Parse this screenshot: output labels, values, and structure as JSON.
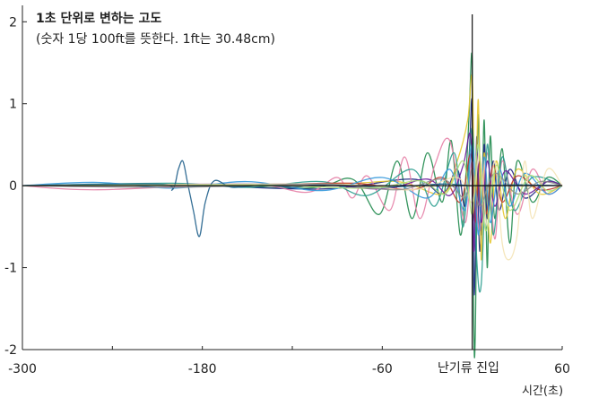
{
  "chart_data": {
    "type": "line",
    "title": "1초 단위로 변하는 고도",
    "subtitle": "(숫자 1당 100ft를 뜻한다. 1ft는 30.48cm)",
    "xlabel": "시간(초)",
    "ylabel": "",
    "xlim": [
      -300,
      60
    ],
    "ylim": [
      -2,
      2.2
    ],
    "x_ticks": [
      -300,
      -180,
      -60,
      60
    ],
    "x_tick_labels": [
      "-300",
      "-180",
      "-60",
      "60"
    ],
    "y_ticks": [
      -2,
      -1,
      0,
      1,
      2
    ],
    "y_tick_labels": [
      "-2",
      "-1",
      "0",
      "1",
      "2"
    ],
    "grid": false,
    "legend": "none",
    "annotations": [
      {
        "text": "난기류 진입",
        "x": 0
      }
    ],
    "series": [
      {
        "color": "#1f8a4c",
        "x": [
          -300,
          -200,
          -110,
          -80,
          -62,
          -50,
          -40,
          -30,
          -20,
          -14,
          -8,
          -4,
          -2,
          0,
          1,
          2,
          4,
          6,
          8,
          10,
          12,
          15,
          20,
          25,
          30,
          40,
          50,
          60
        ],
        "values": [
          0,
          0.01,
          -0.03,
          0.08,
          -0.35,
          0.3,
          -0.4,
          0.4,
          -0.2,
          0.55,
          -0.6,
          0.2,
          0.9,
          1.5,
          -1.6,
          -1.85,
          0.85,
          -0.6,
          0.8,
          -1.0,
          0.6,
          -0.4,
          0.45,
          -0.7,
          0.3,
          -0.2,
          0.1,
          0
        ]
      },
      {
        "color": "#1a237e",
        "x": [
          -300,
          -200,
          -100,
          -40,
          -20,
          -10,
          -5,
          -2,
          0,
          1,
          2,
          3,
          5,
          8,
          10,
          14,
          18,
          25,
          35,
          50,
          60
        ],
        "values": [
          0,
          0.01,
          -0.04,
          0.08,
          -0.1,
          0.2,
          -0.25,
          0.4,
          1.0,
          -1.2,
          -0.9,
          0.6,
          -0.8,
          0.5,
          -0.4,
          0.3,
          -0.3,
          0.2,
          -0.15,
          0.05,
          0
        ]
      },
      {
        "color": "#e6c62d",
        "x": [
          -300,
          -100,
          -50,
          -20,
          -10,
          -3,
          0,
          2,
          4,
          6,
          8,
          12,
          16,
          22,
          30,
          45,
          60
        ],
        "values": [
          0,
          0.02,
          0.05,
          -0.1,
          0.3,
          0.8,
          1.3,
          -0.5,
          1.05,
          -0.9,
          0.4,
          -0.7,
          0.3,
          -0.4,
          0.2,
          -0.1,
          0
        ]
      },
      {
        "color": "#e57fa6",
        "x": [
          -300,
          -250,
          -150,
          -110,
          -90,
          -80,
          -70,
          -55,
          -45,
          -35,
          -25,
          -15,
          -5,
          0,
          5,
          10,
          15,
          20,
          30,
          40,
          50,
          60
        ],
        "values": [
          0,
          -0.05,
          0.02,
          -0.08,
          0.1,
          -0.15,
          0.12,
          -0.3,
          0.35,
          -0.4,
          0.25,
          0.55,
          -0.45,
          0.3,
          -0.55,
          0.4,
          -0.65,
          0.3,
          -0.35,
          0.2,
          -0.1,
          0
        ]
      },
      {
        "color": "#2a9d8f",
        "x": [
          -300,
          -200,
          -150,
          -100,
          -70,
          -40,
          -25,
          -12,
          -6,
          0,
          3,
          6,
          10,
          14,
          20,
          28,
          40,
          60
        ],
        "values": [
          0,
          0.03,
          -0.02,
          0.05,
          -0.12,
          0.2,
          -0.25,
          0.4,
          -0.5,
          0.7,
          -0.9,
          -1.2,
          0.5,
          -0.6,
          0.35,
          -0.3,
          0.1,
          0
        ]
      },
      {
        "color": "#c0392b",
        "x": [
          -300,
          -150,
          -80,
          -40,
          -20,
          -8,
          -2,
          0,
          2,
          5,
          9,
          14,
          20,
          30,
          45,
          60
        ],
        "values": [
          0,
          0.01,
          0.03,
          -0.05,
          0.1,
          -0.2,
          0.35,
          0.25,
          -0.45,
          0.3,
          -0.35,
          0.25,
          -0.2,
          0.12,
          -0.05,
          0
        ]
      },
      {
        "color": "#6a1b9a",
        "x": [
          -300,
          -120,
          -60,
          -30,
          -15,
          -6,
          -1,
          1,
          3,
          6,
          10,
          15,
          22,
          35,
          50,
          60
        ],
        "values": [
          0,
          0.02,
          -0.04,
          0.08,
          -0.12,
          0.25,
          0.6,
          -0.8,
          0.4,
          -0.45,
          0.3,
          -0.25,
          0.18,
          -0.1,
          0.05,
          0
        ]
      },
      {
        "color": "#3498db",
        "x": [
          -300,
          -250,
          -200,
          -150,
          -100,
          -60,
          -30,
          -15,
          -5,
          0,
          4,
          8,
          12,
          18,
          25,
          35,
          50,
          60
        ],
        "values": [
          0,
          0.04,
          -0.03,
          0.05,
          -0.06,
          0.1,
          -0.15,
          0.2,
          -0.3,
          0.5,
          -0.6,
          0.35,
          -0.45,
          0.2,
          -0.25,
          0.15,
          -0.1,
          0
        ]
      },
      {
        "color": "#f4e3b5",
        "x": [
          -300,
          -100,
          -40,
          -10,
          0,
          5,
          10,
          15,
          20,
          25,
          30,
          35,
          40,
          50,
          60
        ],
        "values": [
          0,
          0.02,
          -0.05,
          0.1,
          -0.2,
          0.4,
          -0.5,
          0.3,
          -0.7,
          -0.9,
          -0.6,
          0.3,
          -0.4,
          0.2,
          0
        ]
      },
      {
        "color": "#1f5f8b",
        "x": [
          -300,
          -210,
          -200,
          -196,
          -193,
          -190,
          -186,
          -182,
          -178,
          -172,
          -160,
          -140,
          -120,
          -100,
          -60,
          -20,
          0,
          30,
          60
        ],
        "values": [
          0,
          0.02,
          -0.05,
          0.2,
          0.3,
          0.05,
          -0.3,
          -0.62,
          -0.2,
          0.06,
          -0.02,
          0.01,
          -0.02,
          0.01,
          -0.02,
          0.02,
          0,
          0.01,
          0
        ]
      },
      {
        "color": "#8e8e8e",
        "x": [
          -300,
          -200,
          -100,
          -50,
          -20,
          -5,
          0,
          5,
          15,
          30,
          45,
          60
        ],
        "values": [
          0,
          -0.02,
          0.02,
          -0.05,
          0.08,
          -0.15,
          0.2,
          -0.25,
          0.15,
          -0.1,
          0.05,
          0
        ]
      },
      {
        "color": "#aee07a",
        "x": [
          -300,
          -150,
          -70,
          -35,
          -18,
          -6,
          0,
          4,
          9,
          16,
          25,
          38,
          50,
          60
        ],
        "values": [
          0,
          0.01,
          -0.03,
          0.06,
          -0.1,
          0.3,
          -0.35,
          0.5,
          -0.55,
          0.25,
          -0.3,
          0.12,
          -0.06,
          0
        ]
      }
    ]
  }
}
